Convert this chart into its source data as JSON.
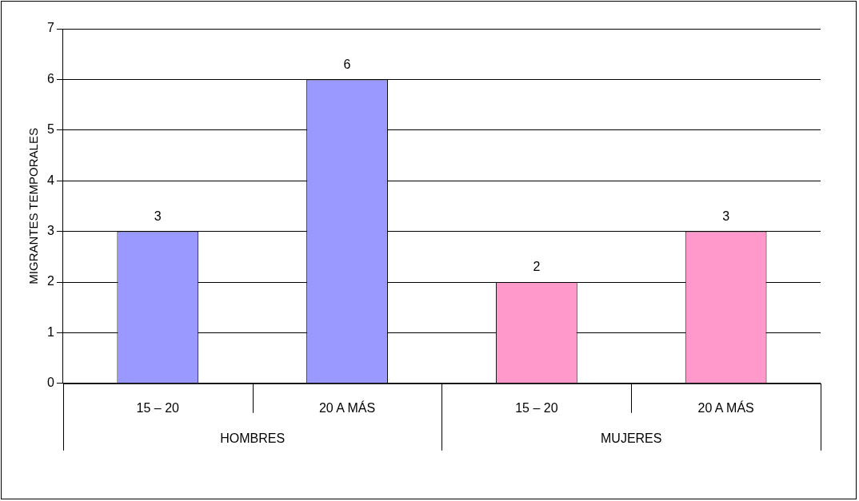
{
  "chart_data": {
    "type": "bar",
    "ylabel": "MIGRANTES TEMPORALES",
    "categories": [
      "15 – 20",
      "20 A MÁS",
      "15 – 20",
      "20 A MÁS"
    ],
    "values": [
      3,
      6,
      2,
      3
    ],
    "colors": [
      "#9999ff",
      "#9999ff",
      "#ff99cc",
      "#ff99cc"
    ],
    "ylim": [
      0,
      7
    ],
    "yticks": [
      0,
      1,
      2,
      3,
      4,
      5,
      6,
      7
    ],
    "grid": "y",
    "legend": false,
    "data_labels": true,
    "annotations": [
      "HOMBRES",
      "MUJERES"
    ]
  }
}
